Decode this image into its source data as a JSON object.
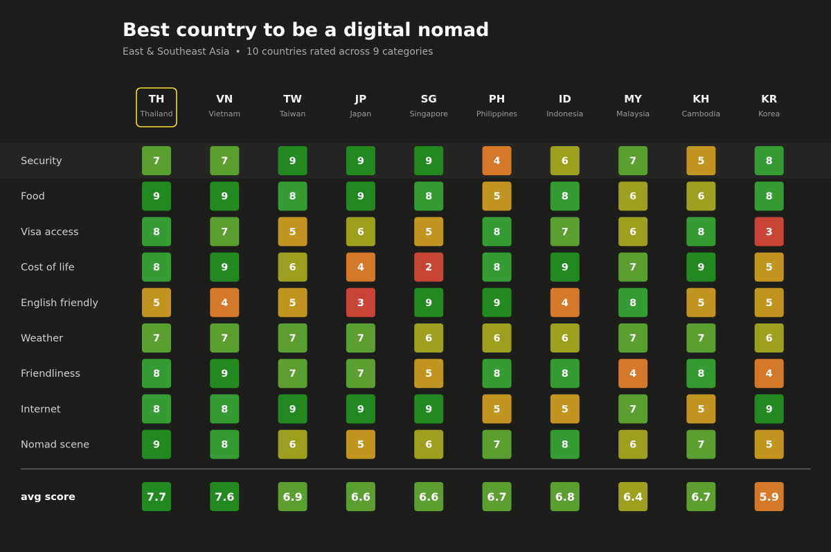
{
  "title": "Best country to be a digital nomad",
  "subtitle": {
    "region": "East & Southeast Asia",
    "separator": "•",
    "summary": "10 countries rated across 9 categories"
  },
  "colors": {
    "background": "#1d1d1b",
    "row_band": "#252523",
    "highlight": "#f5df2a",
    "divider": "#5e5e5c",
    "score_2": "#c84536",
    "score_3": "#c84536",
    "score_4": "#d4782a",
    "score_5": "#c1951f",
    "score_6": "#9d9f1f",
    "score_7": "#5c9f31",
    "score_8": "#349c33",
    "score_9": "#21891f"
  },
  "chart_data": {
    "type": "table",
    "highlighted_country": "TH",
    "countries": [
      {
        "code": "TH",
        "name": "Thailand"
      },
      {
        "code": "VN",
        "name": "Vietnam"
      },
      {
        "code": "TW",
        "name": "Taiwan"
      },
      {
        "code": "JP",
        "name": "Japan"
      },
      {
        "code": "SG",
        "name": "Singapore"
      },
      {
        "code": "PH",
        "name": "Philippines"
      },
      {
        "code": "ID",
        "name": "Indonesia"
      },
      {
        "code": "MY",
        "name": "Malaysia"
      },
      {
        "code": "KH",
        "name": "Cambodia"
      },
      {
        "code": "KR",
        "name": "Korea"
      }
    ],
    "categories": [
      {
        "label": "Security",
        "scores": [
          7,
          7,
          9,
          9,
          9,
          4,
          6,
          7,
          5,
          8
        ]
      },
      {
        "label": "Food",
        "scores": [
          9,
          9,
          8,
          9,
          8,
          5,
          8,
          6,
          6,
          8
        ]
      },
      {
        "label": "Visa access",
        "scores": [
          8,
          7,
          5,
          6,
          5,
          8,
          7,
          6,
          8,
          3
        ]
      },
      {
        "label": "Cost of life",
        "scores": [
          8,
          9,
          6,
          4,
          2,
          8,
          9,
          7,
          9,
          5
        ]
      },
      {
        "label": "English friendly",
        "scores": [
          5,
          4,
          5,
          3,
          9,
          9,
          4,
          8,
          5,
          5
        ]
      },
      {
        "label": "Weather",
        "scores": [
          7,
          7,
          7,
          7,
          6,
          6,
          6,
          7,
          7,
          6
        ]
      },
      {
        "label": "Friendliness",
        "scores": [
          8,
          9,
          7,
          7,
          5,
          8,
          8,
          4,
          8,
          4
        ]
      },
      {
        "label": "Internet",
        "scores": [
          8,
          8,
          9,
          9,
          9,
          5,
          5,
          7,
          5,
          9
        ]
      },
      {
        "label": "Nomad scene",
        "scores": [
          9,
          8,
          6,
          5,
          6,
          7,
          8,
          6,
          7,
          5
        ]
      }
    ],
    "average": {
      "label": "avg score",
      "values": [
        "7.7",
        "7.6",
        "6.9",
        "6.6",
        "6.6",
        "6.7",
        "6.8",
        "6.4",
        "6.7",
        "5.9"
      ],
      "color_keys": [
        "9",
        "9",
        "7",
        "7",
        "7",
        "7",
        "7",
        "6",
        "7",
        "4"
      ]
    }
  }
}
